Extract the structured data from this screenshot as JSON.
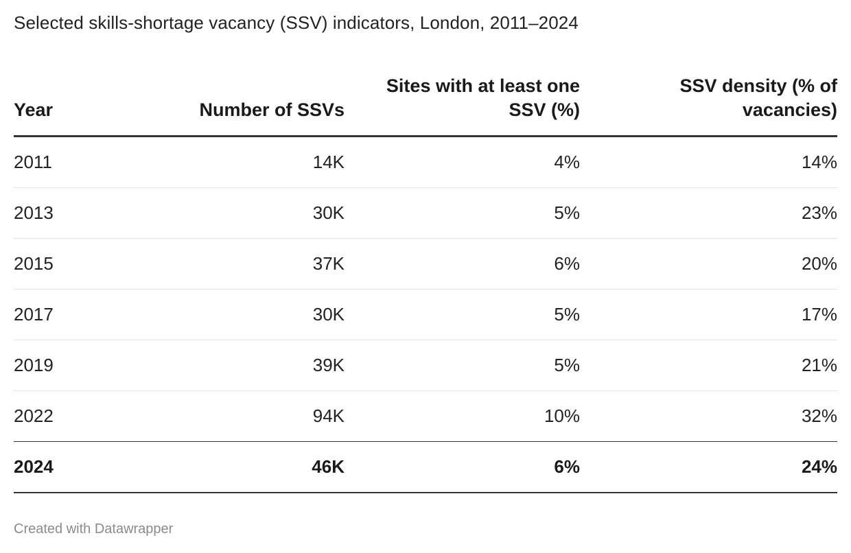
{
  "title": "Selected skills-shortage vacancy (SSV) indicators, London, 2011–2024",
  "footer": "Created with Datawrapper",
  "chart_data": {
    "type": "table",
    "title": "Selected skills-shortage vacancy (SSV) indicators, London, 2011–2024",
    "columns": [
      "Year",
      "Number of SSVs",
      "Sites with at least one SSV (%)",
      "SSV density (% of vacancies)"
    ],
    "rows": [
      {
        "year": "2011",
        "ssvs": "14K",
        "sites": "4%",
        "density": "14%"
      },
      {
        "year": "2013",
        "ssvs": "30K",
        "sites": "5%",
        "density": "23%"
      },
      {
        "year": "2015",
        "ssvs": "37K",
        "sites": "6%",
        "density": "20%"
      },
      {
        "year": "2017",
        "ssvs": "30K",
        "sites": "5%",
        "density": "17%"
      },
      {
        "year": "2019",
        "ssvs": "39K",
        "sites": "5%",
        "density": "21%"
      },
      {
        "year": "2022",
        "ssvs": "94K",
        "sites": "10%",
        "density": "32%"
      },
      {
        "year": "2024",
        "ssvs": "46K",
        "sites": "6%",
        "density": "24%"
      }
    ]
  }
}
